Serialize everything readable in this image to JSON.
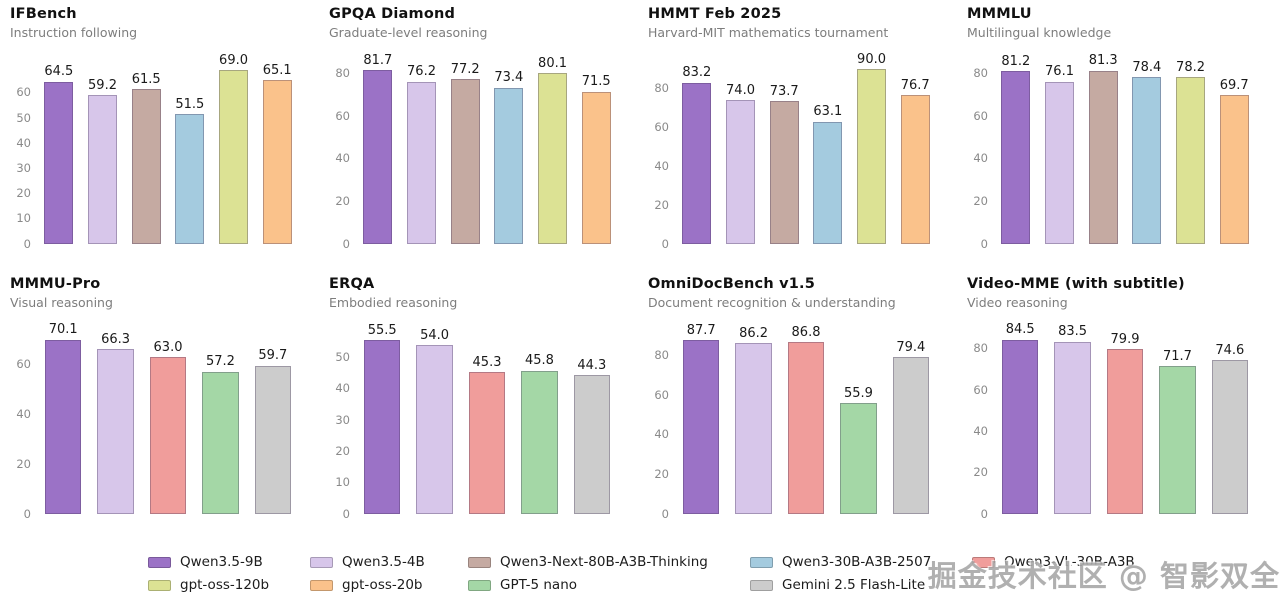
{
  "watermark": {
    "text": "掘金技术社区 @ 智影双全"
  },
  "legend": {
    "items": [
      {
        "name": "Qwen3.5-9B",
        "color": "#9b72c6"
      },
      {
        "name": "Qwen3.5-4B",
        "color": "#d7c6ea"
      },
      {
        "name": "Qwen3-Next-80B-A3B-Thinking",
        "color": "#c5aaa2"
      },
      {
        "name": "Qwen3-30B-A3B-2507",
        "color": "#a4cbdf"
      },
      {
        "name": "Qwen3-VL-30B-A3B",
        "color": "#f09d9b"
      },
      {
        "name": "gpt-oss-120b",
        "color": "#dce294"
      },
      {
        "name": "gpt-oss-20b",
        "color": "#fac28b"
      },
      {
        "name": "GPT-5 nano",
        "color": "#a4d7a6"
      },
      {
        "name": "Gemini 2.5 Flash-Lite",
        "color": "#cccccc"
      }
    ]
  },
  "chart_data": [
    {
      "type": "bar",
      "title": "IFBench",
      "subtitle": "Instruction following",
      "categories": [
        "Qwen3.5-9B",
        "Qwen3.5-4B",
        "Qwen3-Next-80B-A3B-Thinking",
        "Qwen3-30B-A3B-2507",
        "gpt-oss-120b",
        "gpt-oss-20b"
      ],
      "values": [
        64.5,
        59.2,
        61.5,
        51.5,
        69.0,
        65.1
      ],
      "yticks": [
        0,
        10,
        20,
        30,
        40,
        50,
        60
      ],
      "ylim": [
        0,
        77
      ],
      "grid": false,
      "legend_position": "shared-bottom"
    },
    {
      "type": "bar",
      "title": "GPQA Diamond",
      "subtitle": "Graduate-level reasoning",
      "categories": [
        "Qwen3.5-9B",
        "Qwen3.5-4B",
        "Qwen3-Next-80B-A3B-Thinking",
        "Qwen3-30B-A3B-2507",
        "gpt-oss-120b",
        "gpt-oss-20b"
      ],
      "values": [
        81.7,
        76.2,
        77.2,
        73.4,
        80.1,
        71.5
      ],
      "yticks": [
        0,
        20,
        40,
        60,
        80
      ],
      "ylim": [
        0,
        91
      ],
      "grid": false,
      "legend_position": "shared-bottom"
    },
    {
      "type": "bar",
      "title": "HMMT Feb 2025",
      "subtitle": "Harvard-MIT mathematics tournament",
      "categories": [
        "Qwen3.5-9B",
        "Qwen3.5-4B",
        "Qwen3-Next-80B-A3B-Thinking",
        "Qwen3-30B-A3B-2507",
        "gpt-oss-120b",
        "gpt-oss-20b"
      ],
      "values": [
        83.2,
        74.0,
        73.7,
        63.1,
        90.0,
        76.7
      ],
      "yticks": [
        0,
        20,
        40,
        60,
        80
      ],
      "ylim": [
        0,
        100
      ],
      "grid": false,
      "legend_position": "shared-bottom"
    },
    {
      "type": "bar",
      "title": "MMMLU",
      "subtitle": "Multilingual knowledge",
      "categories": [
        "Qwen3.5-9B",
        "Qwen3.5-4B",
        "Qwen3-Next-80B-A3B-Thinking",
        "Qwen3-30B-A3B-2507",
        "gpt-oss-120b",
        "gpt-oss-20b"
      ],
      "values": [
        81.2,
        76.1,
        81.3,
        78.4,
        78.2,
        69.7
      ],
      "yticks": [
        0,
        20,
        40,
        60,
        80
      ],
      "ylim": [
        0,
        91
      ],
      "grid": false,
      "legend_position": "shared-bottom"
    },
    {
      "type": "bar",
      "title": "MMMU-Pro",
      "subtitle": "Visual reasoning",
      "categories": [
        "Qwen3.5-9B",
        "Qwen3.5-4B",
        "Qwen3-VL-30B-A3B",
        "GPT-5 nano",
        "Gemini 2.5 Flash-Lite"
      ],
      "values": [
        70.1,
        66.3,
        63.0,
        57.2,
        59.7
      ],
      "yticks": [
        0,
        20,
        40,
        60
      ],
      "ylim": [
        0,
        78
      ],
      "grid": false,
      "legend_position": "shared-bottom"
    },
    {
      "type": "bar",
      "title": "ERQA",
      "subtitle": "Embodied reasoning",
      "categories": [
        "Qwen3.5-9B",
        "Qwen3.5-4B",
        "Qwen3-VL-30B-A3B",
        "GPT-5 nano",
        "Gemini 2.5 Flash-Lite"
      ],
      "values": [
        55.5,
        54.0,
        45.3,
        45.8,
        44.3
      ],
      "yticks": [
        0,
        10,
        20,
        30,
        40,
        50
      ],
      "ylim": [
        0,
        62
      ],
      "grid": false,
      "legend_position": "shared-bottom"
    },
    {
      "type": "bar",
      "title": "OmniDocBench v1.5",
      "subtitle": "Document recognition & understanding",
      "categories": [
        "Qwen3.5-9B",
        "Qwen3.5-4B",
        "Qwen3-VL-30B-A3B",
        "GPT-5 nano",
        "Gemini 2.5 Flash-Lite"
      ],
      "values": [
        87.7,
        86.2,
        86.8,
        55.9,
        79.4
      ],
      "yticks": [
        0,
        20,
        40,
        60,
        80
      ],
      "ylim": [
        0,
        98
      ],
      "grid": false,
      "legend_position": "shared-bottom"
    },
    {
      "type": "bar",
      "title": "Video-MME (with subtitle)",
      "subtitle": "Video reasoning",
      "categories": [
        "Qwen3.5-9B",
        "Qwen3.5-4B",
        "Qwen3-VL-30B-A3B",
        "GPT-5 nano",
        "Gemini 2.5 Flash-Lite"
      ],
      "values": [
        84.5,
        83.5,
        79.9,
        71.7,
        74.6
      ],
      "yticks": [
        0,
        20,
        40,
        60,
        80
      ],
      "ylim": [
        0,
        94
      ],
      "grid": false,
      "legend_position": "shared-bottom"
    }
  ]
}
